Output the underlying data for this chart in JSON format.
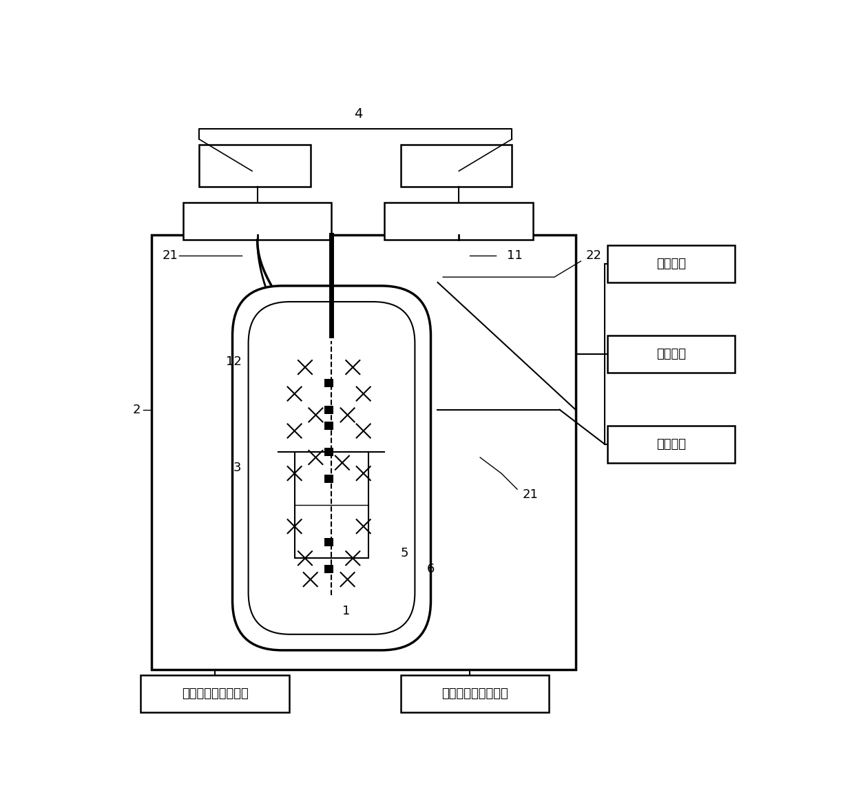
{
  "bg_color": "#ffffff",
  "lc": "#000000",
  "fig_w": 12.4,
  "fig_h": 11.7,
  "dpi": 100,
  "bottom_label_left": "高低温设备控制系统",
  "bottom_label_right": "高低温设备监视系统",
  "right_label_0": "测温系统",
  "right_label_1": "监视系统",
  "right_label_2": "加热系统"
}
